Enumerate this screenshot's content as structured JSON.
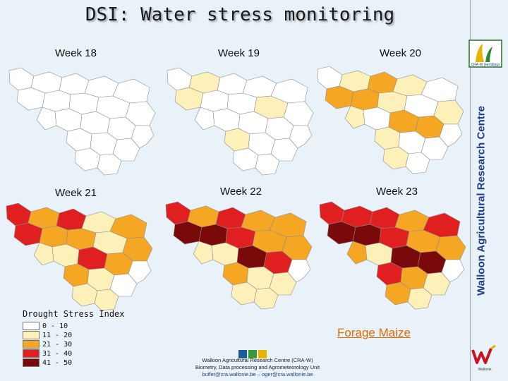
{
  "title": "DSI: Water stress monitoring",
  "weeks": [
    {
      "label": "Week 18",
      "stress": [
        0,
        0,
        0,
        0,
        0,
        0,
        0,
        0,
        0,
        0,
        0,
        0,
        0,
        0,
        0,
        0,
        0,
        0,
        0,
        0
      ]
    },
    {
      "label": "Week 19",
      "stress": [
        0,
        1,
        0,
        0,
        0,
        1,
        0,
        0,
        1,
        0,
        0,
        0,
        0,
        0,
        1,
        0,
        0,
        0,
        0,
        0
      ]
    },
    {
      "label": "Week 20",
      "stress": [
        0,
        1,
        2,
        1,
        0,
        2,
        2,
        1,
        0,
        1,
        1,
        0,
        2,
        2,
        1,
        0,
        0,
        1,
        0,
        0
      ]
    },
    {
      "label": "Week 21",
      "stress": [
        3,
        2,
        3,
        1,
        2,
        3,
        2,
        2,
        1,
        2,
        1,
        1,
        3,
        2,
        2,
        1,
        0,
        1,
        1,
        0
      ]
    },
    {
      "label": "Week 22",
      "stress": [
        3,
        2,
        3,
        2,
        2,
        4,
        4,
        3,
        2,
        2,
        1,
        1,
        4,
        3,
        2,
        1,
        1,
        1,
        1,
        0
      ]
    },
    {
      "label": "Week 23",
      "stress": [
        3,
        3,
        3,
        2,
        3,
        4,
        4,
        3,
        2,
        2,
        2,
        1,
        4,
        4,
        3,
        2,
        1,
        2,
        1,
        0
      ]
    }
  ],
  "legend": {
    "title": "Drought Stress Index",
    "items": [
      {
        "label": "0 - 10",
        "color": "#ffffff"
      },
      {
        "label": "11 - 20",
        "color": "#fdf0b8"
      },
      {
        "label": "21 - 30",
        "color": "#f5a623"
      },
      {
        "label": "31 - 40",
        "color": "#e02020"
      },
      {
        "label": "41 - 50",
        "color": "#7a0a0a"
      }
    ]
  },
  "crop": "Forage Maize",
  "footer": {
    "line1": "Walloon Agricultural Research Centre (CRA-W)",
    "line2": "Biometry, Data processing and Agrometeorology Unit",
    "line3": "buffet@cra.wallonie.be – oger@cra.wallonie.be"
  },
  "sidebar_text": "Walloon Agricultural Research Centre",
  "logo_text": "CRA-W Gembloux",
  "logo_bottom_text": "Wallonie"
}
